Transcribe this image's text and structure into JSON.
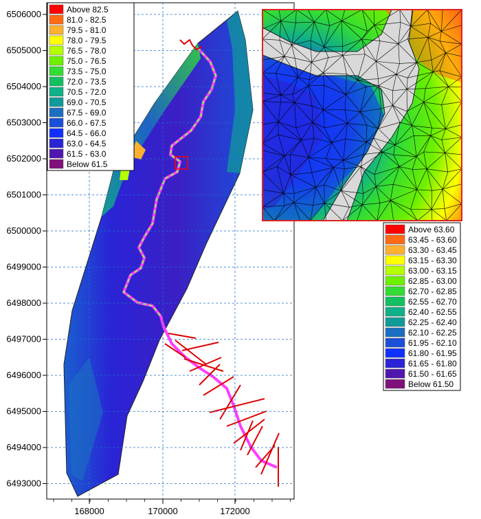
{
  "main_map": {
    "y_ticks": [
      "6506000",
      "6505000",
      "6504000",
      "6503000",
      "6502000",
      "6501000",
      "6500000",
      "6499000",
      "6498000",
      "6497000",
      "6496000",
      "6495000",
      "6494000",
      "6493000"
    ],
    "x_ticks": [
      "168000",
      "170000",
      "172000"
    ],
    "legend": [
      {
        "label": "Above 82.5",
        "color": "#ff0000"
      },
      {
        "label": "81.0 - 82.5",
        "color": "#ff6a14"
      },
      {
        "label": "79.5 - 81.0",
        "color": "#ffb030"
      },
      {
        "label": "78.0 - 79.5",
        "color": "#ffff00"
      },
      {
        "label": "76.5 - 78.0",
        "color": "#b4ff00"
      },
      {
        "label": "75.0 - 76.5",
        "color": "#6ef000"
      },
      {
        "label": "73.5 - 75.0",
        "color": "#33dd33"
      },
      {
        "label": "72.0 - 73.5",
        "color": "#13c060"
      },
      {
        "label": "70.5 - 72.0",
        "color": "#10b088"
      },
      {
        "label": "69.0 - 70.5",
        "color": "#109a9a"
      },
      {
        "label": "67.5 - 69.0",
        "color": "#1a6fc2"
      },
      {
        "label": "66.0 - 67.5",
        "color": "#1b4fd9"
      },
      {
        "label": "64.5 - 66.0",
        "color": "#1030ff"
      },
      {
        "label": "63.0 - 64.5",
        "color": "#2a24d6"
      },
      {
        "label": "61.5 - 63.0",
        "color": "#5016b0"
      },
      {
        "label": "Below 61.5",
        "color": "#80107a"
      }
    ]
  },
  "inset_map": {
    "legend": [
      {
        "label": "Above  63.60",
        "color": "#ff0000"
      },
      {
        "label": "63.45 - 63.60",
        "color": "#ff6a14"
      },
      {
        "label": "63.30 - 63.45",
        "color": "#ffb030"
      },
      {
        "label": "63.15 - 63.30",
        "color": "#ffff00"
      },
      {
        "label": "63.00 - 63.15",
        "color": "#b4ff00"
      },
      {
        "label": "62.85 - 63.00",
        "color": "#6ef000"
      },
      {
        "label": "62.70 - 62.85",
        "color": "#33dd33"
      },
      {
        "label": "62.55 - 62.70",
        "color": "#13c060"
      },
      {
        "label": "62.40 - 62.55",
        "color": "#10b088"
      },
      {
        "label": "62.25 - 62.40",
        "color": "#109a9a"
      },
      {
        "label": "62.10 - 62.25",
        "color": "#1a6fc2"
      },
      {
        "label": "61.95 - 62.10",
        "color": "#1b4fd9"
      },
      {
        "label": "61.80 - 61.95",
        "color": "#1030ff"
      },
      {
        "label": "61.65 - 61.80",
        "color": "#2a24d6"
      },
      {
        "label": "61.50 - 61.65",
        "color": "#5016b0"
      },
      {
        "label": "Below  61.50",
        "color": "#80107a"
      }
    ]
  }
}
